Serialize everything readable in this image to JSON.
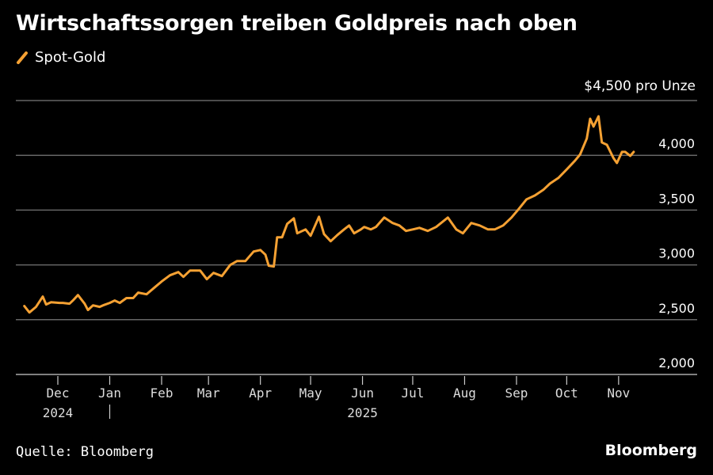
{
  "title": "Wirtschaftssorgen treiben Goldpreis nach oben",
  "source": "Quelle: Bloomberg",
  "brand": "Bloomberg",
  "chart_data": {
    "type": "line",
    "title": "Wirtschaftssorgen treiben Goldpreis nach oben",
    "unit_label": "$4,500 pro Unze",
    "x_unit": "days since 2024-12-01",
    "ylim": [
      2000,
      4500
    ],
    "y_ticks": [
      2000,
      2500,
      3000,
      3500,
      4000,
      4500
    ],
    "y_tick_labels": [
      "2,000",
      "2,500",
      "3,000",
      "3,500",
      "4,000"
    ],
    "grid": true,
    "legend_position": "top-left",
    "x_ticks": [
      0,
      31,
      62,
      90,
      121,
      151,
      182,
      212,
      243,
      274,
      304,
      335
    ],
    "x_tick_labels": [
      "Dec",
      "Jan",
      "Feb",
      "Mar",
      "Apr",
      "May",
      "Jun",
      "Jul",
      "Aug",
      "Sep",
      "Oct",
      "Nov"
    ],
    "year_labels": [
      {
        "label": "2024",
        "x": 0
      },
      {
        "label": "2025",
        "x": 182
      }
    ],
    "year_divider_x": 31,
    "xlim": [
      -25,
      380
    ],
    "color": "#f5a133",
    "series": [
      {
        "name": "Spot-Gold",
        "x": [
          -20,
          -17,
          -13,
          -9,
          -7,
          -4,
          1,
          3,
          7,
          9,
          12,
          16,
          18,
          21,
          25,
          27,
          31,
          34,
          37,
          41,
          45,
          48,
          53,
          58,
          62,
          67,
          72,
          75,
          79,
          85,
          89,
          93,
          98,
          103,
          107,
          112,
          117,
          121,
          124,
          126,
          129,
          131,
          134,
          137,
          141,
          143,
          148,
          151,
          156,
          159,
          163,
          167,
          171,
          174,
          177,
          181,
          183,
          187,
          190,
          195,
          200,
          204,
          208,
          212,
          216,
          221,
          226,
          233,
          238,
          242,
          247,
          252,
          257,
          261,
          266,
          271,
          275,
          280,
          285,
          290,
          294,
          299,
          304,
          309,
          312,
          316,
          318,
          320,
          323,
          325,
          328,
          332,
          334,
          337,
          339,
          342,
          344
        ],
        "values": [
          2624,
          2566,
          2617,
          2711,
          2639,
          2660,
          2653,
          2653,
          2646,
          2675,
          2725,
          2646,
          2588,
          2631,
          2617,
          2631,
          2653,
          2675,
          2653,
          2697,
          2697,
          2747,
          2732,
          2797,
          2848,
          2905,
          2934,
          2891,
          2949,
          2949,
          2869,
          2927,
          2898,
          2999,
          3035,
          3035,
          3122,
          3136,
          3093,
          2992,
          2985,
          3252,
          3252,
          3374,
          3425,
          3288,
          3324,
          3266,
          3439,
          3281,
          3216,
          3273,
          3324,
          3360,
          3288,
          3324,
          3346,
          3324,
          3346,
          3432,
          3382,
          3360,
          3310,
          3324,
          3338,
          3310,
          3346,
          3432,
          3324,
          3288,
          3382,
          3360,
          3324,
          3324,
          3360,
          3432,
          3504,
          3598,
          3634,
          3685,
          3742,
          3793,
          3872,
          3952,
          4009,
          4154,
          4334,
          4262,
          4356,
          4118,
          4096,
          3973,
          3930,
          4031,
          4031,
          3995,
          4031
        ]
      }
    ]
  }
}
